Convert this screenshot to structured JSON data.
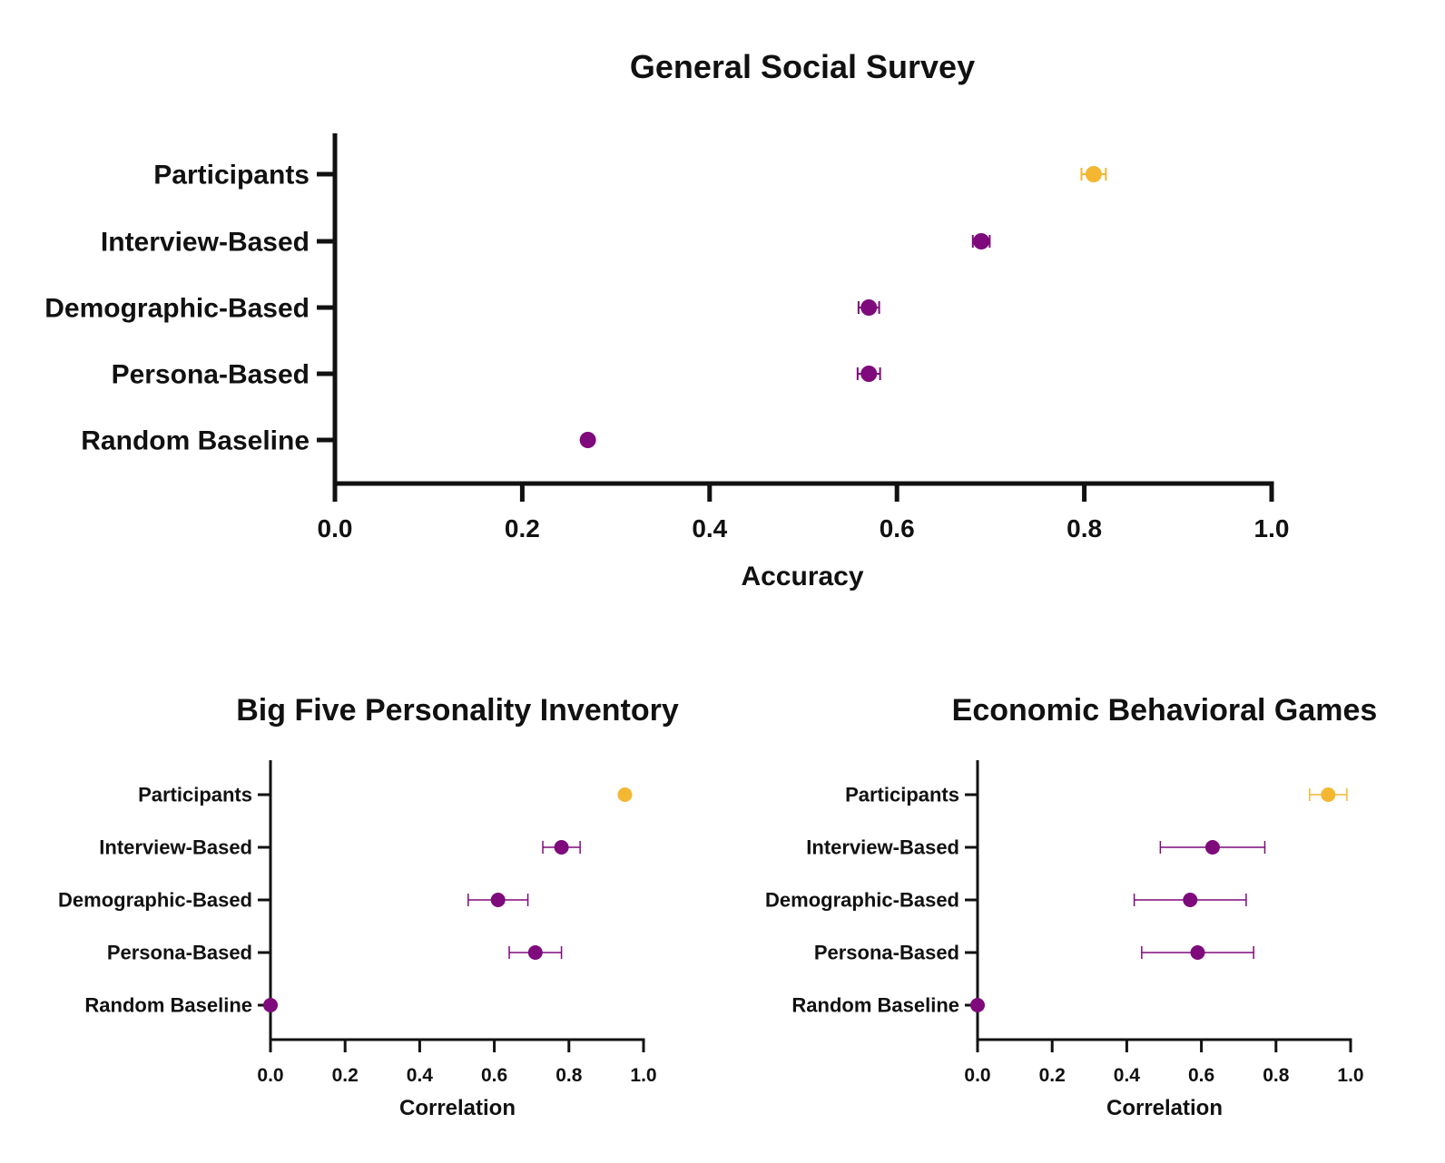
{
  "colors": {
    "participants": "#f3b731",
    "model": "#7e0a7c",
    "axis": "#111111"
  },
  "chart_data": [
    {
      "type": "scatter",
      "title": "General Social Survey",
      "xlabel": "Accuracy",
      "ylabel": "",
      "xlim": [
        0,
        1
      ],
      "xticks": [
        "0.0",
        "0.2",
        "0.4",
        "0.6",
        "0.8",
        "1.0"
      ],
      "categories": [
        "Participants",
        "Interview-Based",
        "Demographic-Based",
        "Persona-Based",
        "Random Baseline"
      ],
      "values": [
        0.81,
        0.69,
        0.57,
        0.57,
        0.27
      ],
      "errors": [
        0.013,
        0.009,
        0.011,
        0.012,
        0
      ],
      "highlight": "Participants"
    },
    {
      "type": "scatter",
      "title": "Big Five Personality Inventory",
      "xlabel": "Correlation",
      "ylabel": "",
      "xlim": [
        0,
        1
      ],
      "xticks": [
        "0.0",
        "0.2",
        "0.4",
        "0.6",
        "0.8",
        "1.0"
      ],
      "categories": [
        "Participants",
        "Interview-Based",
        "Demographic-Based",
        "Persona-Based",
        "Random Baseline"
      ],
      "values": [
        0.95,
        0.78,
        0.61,
        0.71,
        0.0
      ],
      "errors": [
        0,
        0.05,
        0.08,
        0.07,
        0
      ],
      "highlight": "Participants"
    },
    {
      "type": "scatter",
      "title": "Economic Behavioral Games",
      "xlabel": "Correlation",
      "ylabel": "",
      "xlim": [
        0,
        1
      ],
      "xticks": [
        "0.0",
        "0.2",
        "0.4",
        "0.6",
        "0.8",
        "1.0"
      ],
      "categories": [
        "Participants",
        "Interview-Based",
        "Demographic-Based",
        "Persona-Based",
        "Random Baseline"
      ],
      "values": [
        0.94,
        0.63,
        0.57,
        0.59,
        0.0
      ],
      "errors": [
        0.05,
        0.14,
        0.15,
        0.15,
        0
      ],
      "highlight": "Participants"
    }
  ]
}
